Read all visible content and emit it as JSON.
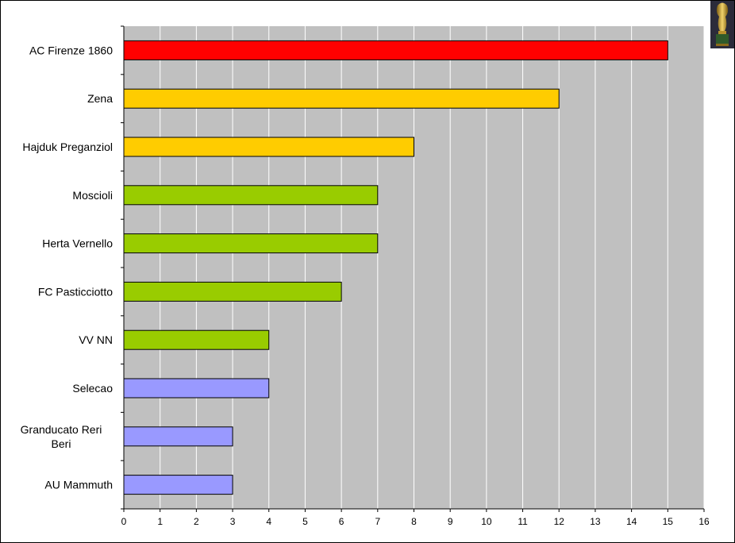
{
  "chart_data": {
    "type": "bar",
    "orientation": "horizontal",
    "categories": [
      "AC Firenze 1860",
      "Zena",
      "Hajduk Preganziol",
      "Moscioli",
      "Herta Vernello",
      "FC Pasticciotto",
      "VV NN",
      "Selecao",
      "Granducato Reri Beri",
      "AU Mammuth"
    ],
    "values": [
      15,
      12,
      8,
      7,
      7,
      6,
      4,
      4,
      3,
      3
    ],
    "bar_colors": [
      "#ff0000",
      "#ffcc00",
      "#ffcc00",
      "#99cc00",
      "#99cc00",
      "#99cc00",
      "#99cc00",
      "#9999ff",
      "#9999ff",
      "#9999ff"
    ],
    "xlim": [
      0,
      16
    ],
    "x_ticks": [
      "0",
      "1",
      "2",
      "3",
      "4",
      "5",
      "6",
      "7",
      "8",
      "9",
      "10",
      "11",
      "12",
      "13",
      "14",
      "15",
      "16"
    ],
    "grid": "vertical",
    "plot_background": "#c0c0c0",
    "gridline_color": "#ffffff",
    "title": "",
    "xlabel": "",
    "ylabel": ""
  },
  "decoration": {
    "icon": "trophy-icon"
  }
}
